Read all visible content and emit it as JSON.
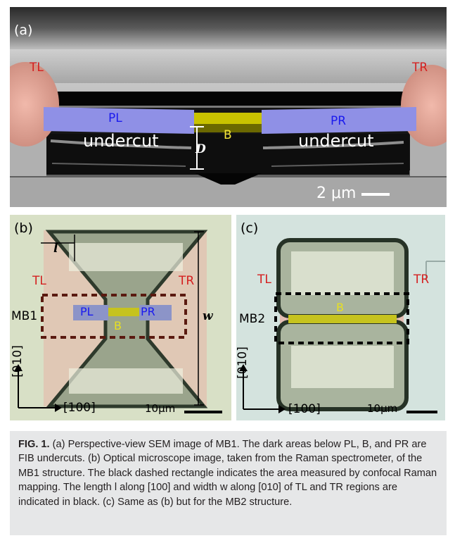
{
  "panel_a": {
    "letter": "(a)",
    "labels": {
      "tl": "TL",
      "tr": "TR",
      "pl": "PL",
      "pr": "PR",
      "b": "B",
      "d": "D",
      "undercut_left": "undercut",
      "undercut_right": "undercut"
    },
    "scalebar": "2 μm"
  },
  "panel_b": {
    "letter": "(b)",
    "labels": {
      "l": "l",
      "tl": "TL",
      "tr": "TR",
      "mb": "MB1",
      "pl": "PL",
      "pr": "PR",
      "b": "B",
      "w": "w"
    },
    "axis_y": "[010]",
    "axis_x": "[100]",
    "scalebar": "10μm"
  },
  "panel_c": {
    "letter": "(c)",
    "labels": {
      "tl": "TL",
      "tr": "TR",
      "mb": "MB2",
      "b": "B"
    },
    "axis_y": "[010]",
    "axis_x": "[100]",
    "scalebar": "10μm"
  },
  "caption": {
    "fig_label": "FIG. 1.",
    "text": "(a) Perspective-view SEM image of MB1. The dark areas below PL, B, and PR are FIB undercuts. (b) Optical microscope image, taken from the Raman spectrometer, of the MB1 structure. The black dashed rectangle indicates the area measured by confocal Raman mapping. The length l along [100] and width w along [010] of TL and TR regions are indicated in black. (c) Same as (b) but for the MB2 structure."
  },
  "colors": {
    "red_label": "#d42020",
    "blue_label": "#1a1aee",
    "yellow_label": "#f5e63a",
    "pad_pink": "#e4a89a",
    "arm_blue": "#8c8ee8",
    "bridge_yellow": "#c8c000"
  }
}
